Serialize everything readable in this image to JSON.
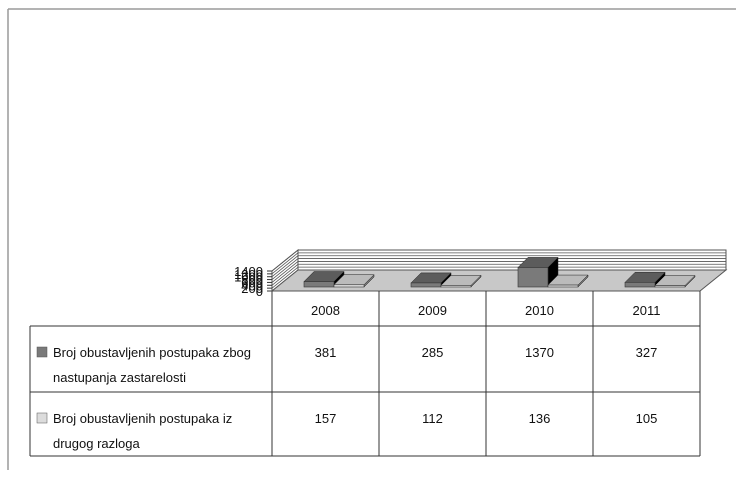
{
  "chart_data": {
    "type": "bar",
    "categories": [
      "2008",
      "2009",
      "2010",
      "2011"
    ],
    "series": [
      {
        "name": "Broj obustavljenih postupaka zbog nastupanja zastarelosti",
        "label_lines": [
          "Broj obustavljenih postupaka zbog",
          "nastupanja zastarelosti"
        ],
        "values": [
          381,
          285,
          1370,
          327
        ],
        "color": "#7a7a7a"
      },
      {
        "name": "Broj obustavljenih postupaka iz drugog razloga",
        "label_lines": [
          "Broj obustavljenih postupaka iz",
          "drugog razloga"
        ],
        "values": [
          157,
          112,
          136,
          105
        ],
        "color": "#dcdcdc"
      }
    ],
    "yticks": [
      "0",
      "200",
      "400",
      "600",
      "800",
      "1000",
      "1200",
      "1400"
    ],
    "ylim": [
      0,
      1400
    ],
    "grid": true,
    "legend_placement": "data-table-left",
    "title": "",
    "xlabel": "",
    "ylabel": ""
  }
}
